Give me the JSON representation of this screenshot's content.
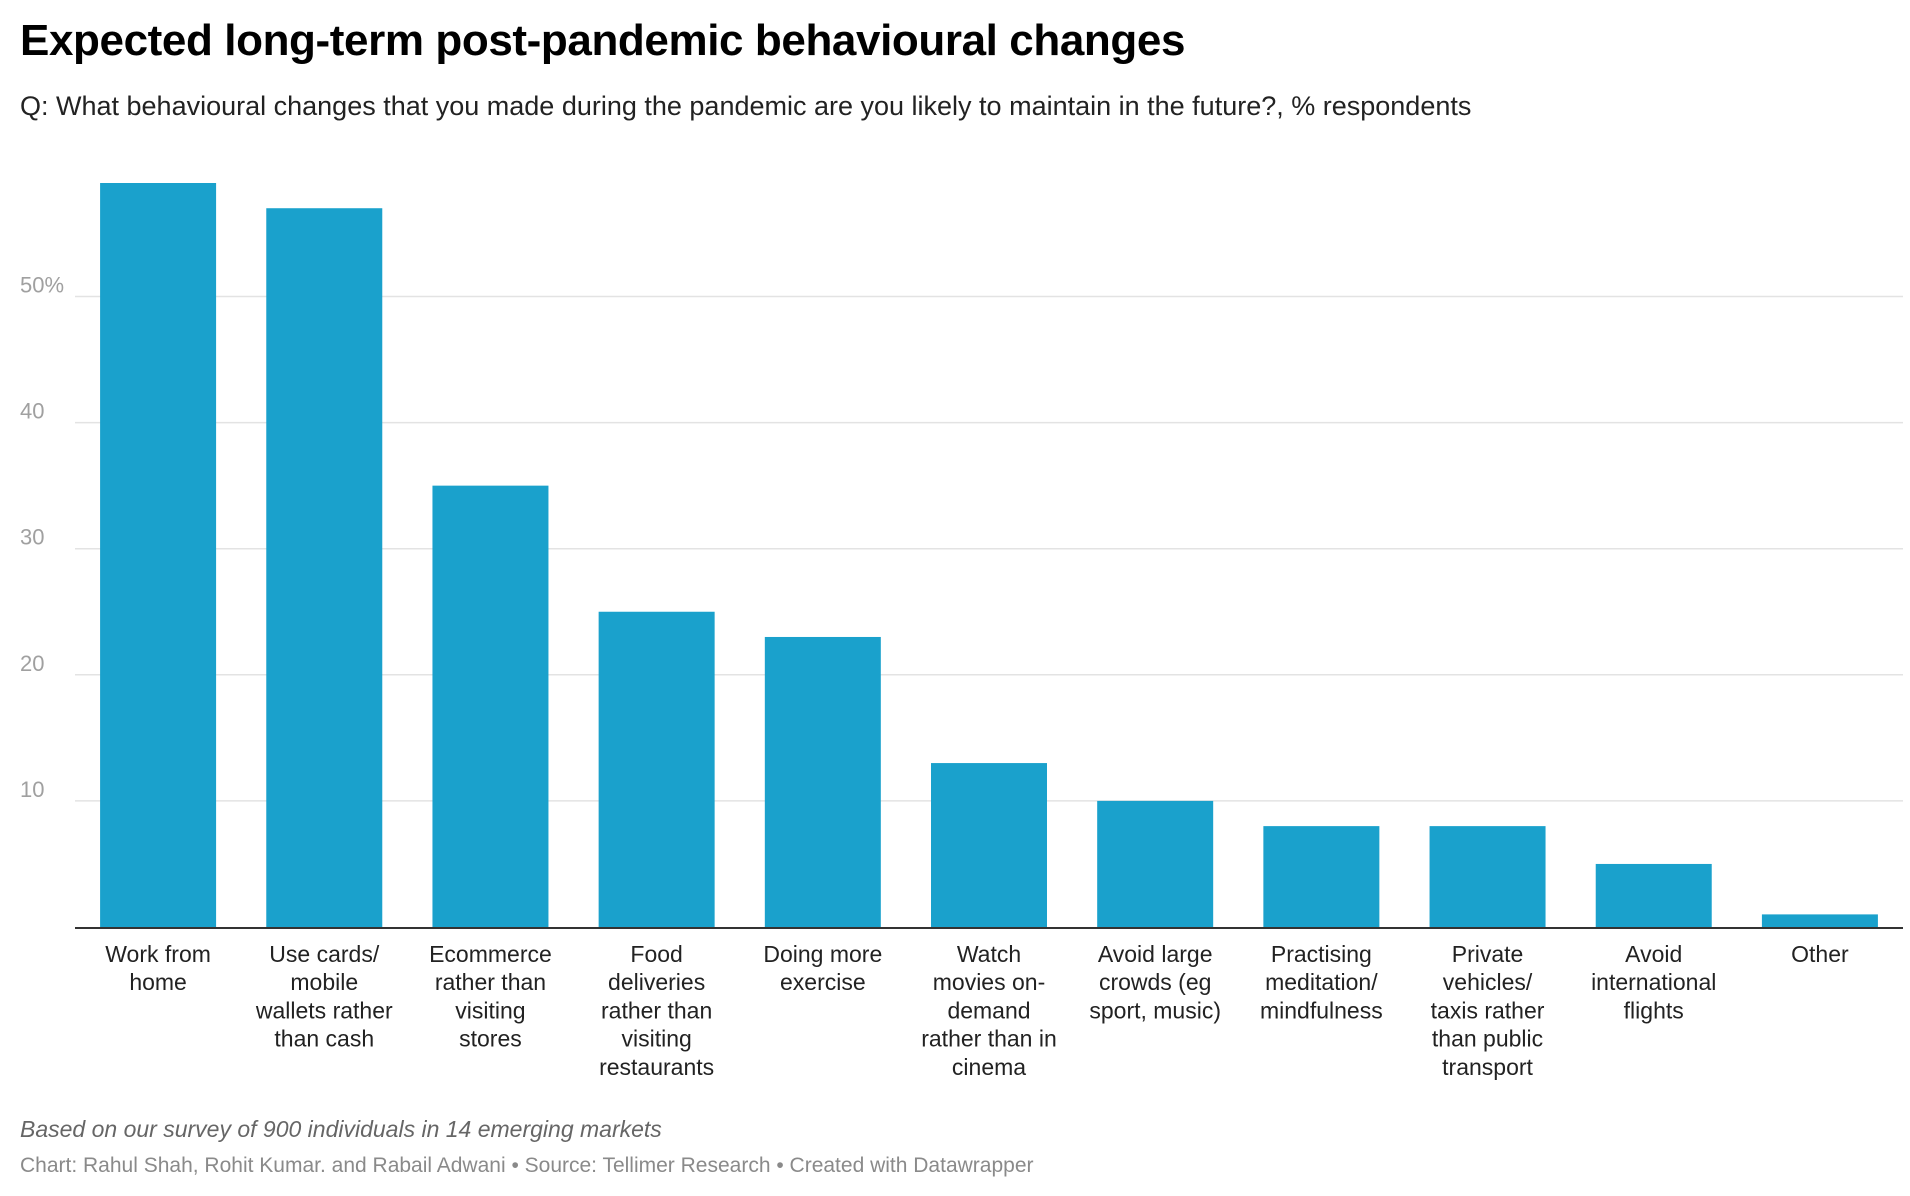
{
  "header": {
    "title": "Expected long-term post-pandemic behavioural changes",
    "subtitle": "Q: What behavioural changes that you made during the pandemic are you likely to maintain in the future?, % respondents"
  },
  "footer": {
    "note": "Based on our survey of 900 individuals in 14 emerging markets",
    "credit": "Chart: Rahul Shah, Rohit Kumar. and Rabail Adwani • Source: Tellimer Research • Created with Datawrapper"
  },
  "chart_data": {
    "type": "bar",
    "categories": [
      [
        "Work from",
        "home"
      ],
      [
        "Use cards/",
        "mobile",
        "wallets rather",
        "than cash"
      ],
      [
        "Ecommerce",
        "rather than",
        "visiting",
        "stores"
      ],
      [
        "Food",
        "deliveries",
        "rather than",
        "visiting",
        "restaurants"
      ],
      [
        "Doing more",
        "exercise"
      ],
      [
        "Watch",
        "movies on-",
        "demand",
        "rather than in",
        "cinema"
      ],
      [
        "Avoid large",
        "crowds (eg",
        "sport, music)"
      ],
      [
        "Practising",
        "meditation/",
        "mindfulness"
      ],
      [
        "Private",
        "vehicles/",
        "taxis rather",
        "than public",
        "transport"
      ],
      [
        "Avoid",
        "international",
        "flights"
      ],
      [
        "Other"
      ]
    ],
    "values": [
      59,
      57,
      35,
      25,
      23,
      13,
      10,
      8,
      8,
      5,
      1
    ],
    "ylim": [
      0,
      59
    ],
    "yticks": [
      {
        "value": 10,
        "label": "10"
      },
      {
        "value": 20,
        "label": "20"
      },
      {
        "value": 30,
        "label": "30"
      },
      {
        "value": 40,
        "label": "40"
      },
      {
        "value": 50,
        "label": "50%"
      }
    ],
    "xlabel": "",
    "ylabel": "",
    "grid": true,
    "bar_color": "#1aa1cc",
    "grid_color": "#e3e3e3",
    "axis_color": "#333333"
  }
}
